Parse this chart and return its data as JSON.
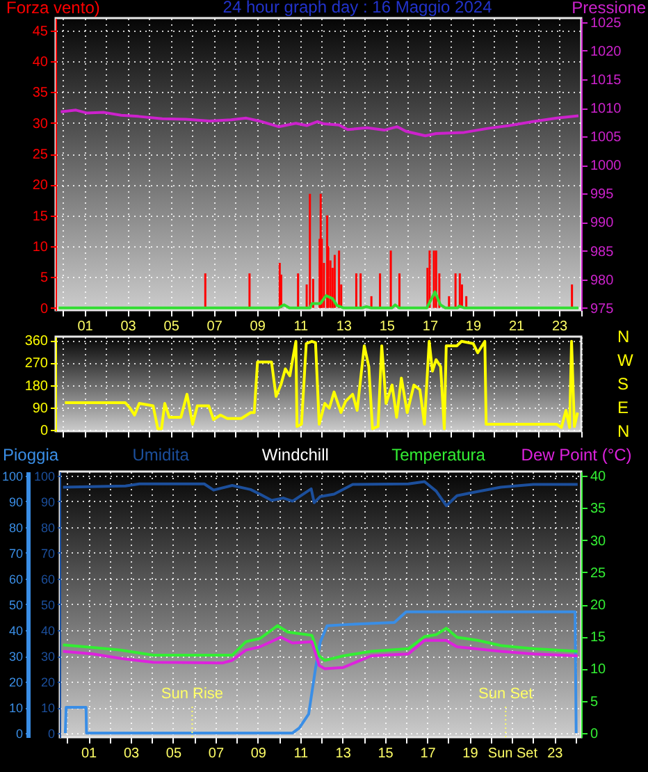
{
  "chart_data": [
    {
      "type": "bar",
      "title": "24 hour graph day : 16 Maggio 2024",
      "ylabel": "Forza vento)",
      "y2label": "Pressione",
      "xlim": [
        -0.34,
        24.03
      ],
      "xticks": [
        {
          "value": 0,
          "label": null
        },
        {
          "value": 1,
          "label": "01"
        },
        {
          "value": 2,
          "label": null
        },
        {
          "value": 3,
          "label": "03"
        },
        {
          "value": 4,
          "label": null
        },
        {
          "value": 5,
          "label": "05"
        },
        {
          "value": 6,
          "label": null
        },
        {
          "value": 7,
          "label": "07"
        },
        {
          "value": 8,
          "label": null
        },
        {
          "value": 9,
          "label": "09"
        },
        {
          "value": 10,
          "label": null
        },
        {
          "value": 11,
          "label": "11"
        },
        {
          "value": 12,
          "label": null
        },
        {
          "value": 13,
          "label": "13"
        },
        {
          "value": 14,
          "label": null
        },
        {
          "value": 15,
          "label": "15"
        },
        {
          "value": 16,
          "label": null
        },
        {
          "value": 17,
          "label": "17"
        },
        {
          "value": 18,
          "label": null
        },
        {
          "value": 19,
          "label": "19"
        },
        {
          "value": 20,
          "label": null
        },
        {
          "value": 21,
          "label": "21"
        },
        {
          "value": 22,
          "label": null
        },
        {
          "value": 23,
          "label": "23"
        },
        {
          "value": 24,
          "label": null
        }
      ],
      "ylim": [
        -0.37,
        47
      ],
      "yticks": [
        0,
        5,
        10,
        15,
        20,
        25,
        30,
        35,
        40,
        45
      ],
      "y2lim": [
        974.6,
        1025.7
      ],
      "y2ticks": [
        975,
        980,
        985,
        990,
        995,
        1000,
        1005,
        1010,
        1015,
        1020,
        1025
      ],
      "grid": true,
      "series": [
        {
          "color": "#ff0000",
          "x": [
            6.6,
            8.65,
            10.05,
            10.12,
            10.9,
            11.3,
            11.45,
            11.6,
            11.9,
            11.95,
            12.0,
            12.1,
            12.25,
            12.3,
            12.4,
            12.5,
            12.6,
            12.8,
            12.9,
            13.6,
            13.8,
            14.3,
            14.7,
            15.2,
            15.6,
            16.9,
            17.0,
            17.2,
            17.3,
            17.45,
            17.9,
            18.2,
            18.4,
            18.5,
            18.7,
            23.6
          ],
          "values": [
            5.6,
            5.6,
            7.3,
            5.4,
            5.6,
            3.8,
            18.5,
            4.7,
            11.2,
            18.5,
            11.2,
            7.3,
            15.0,
            10.0,
            7.7,
            6.5,
            8.6,
            9.3,
            3.8,
            5.6,
            5.6,
            1.9,
            5.6,
            9.3,
            5.6,
            6.5,
            9.3,
            9.3,
            9.3,
            5.6,
            1.9,
            5.6,
            5.6,
            3.8,
            1.9,
            3.8
          ]
        },
        {
          "type": "line",
          "color": "#33dd33",
          "x": [
            -0.2,
            9.99,
            10.25,
            10.5,
            11.45,
            11.54,
            11.93,
            12.2,
            12.5,
            12.7,
            13.0,
            13.86,
            14.07,
            14.3,
            15.26,
            15.4,
            15.58,
            16.87,
            17.25,
            17.5,
            17.73,
            18.3,
            18.37,
            18.6,
            23.9
          ],
          "values": [
            0,
            0,
            0.5,
            0,
            0,
            0.7,
            0.7,
            2.0,
            1.5,
            0.4,
            0,
            0,
            0.2,
            0,
            0,
            0.5,
            0,
            0,
            2.6,
            0.5,
            0,
            0,
            0.3,
            0,
            0
          ]
        },
        {
          "type": "line",
          "axis": "y2",
          "color": "#cc22cc",
          "x": [
            -0.1,
            0.6,
            1.1,
            1.9,
            2.7,
            3.5,
            4.6,
            5.7,
            6.8,
            7.8,
            8.5,
            9.1,
            10.0,
            10.8,
            11.3,
            11.8,
            12.1,
            12.8,
            13.2,
            14.1,
            14.9,
            15.5,
            15.9,
            16.8,
            17.3,
            18.6,
            19.7,
            20.7,
            21.8,
            22.9,
            23.9
          ],
          "values": [
            1009.3,
            1009.6,
            1009.1,
            1009.2,
            1008.7,
            1008.5,
            1008.1,
            1008.0,
            1007.7,
            1007.9,
            1008.2,
            1007.7,
            1006.7,
            1007.3,
            1006.9,
            1007.6,
            1007.2,
            1007.0,
            1006.2,
            1006.5,
            1006.1,
            1006.7,
            1005.9,
            1005.1,
            1005.5,
            1005.7,
            1006.4,
            1006.9,
            1007.6,
            1008.2,
            1008.6
          ]
        }
      ]
    },
    {
      "type": "line",
      "xlim": [
        -0.34,
        24.03
      ],
      "tick_labels": "y",
      "xticks": [
        {
          "value": 0,
          "label": null
        },
        {
          "value": 1,
          "label": null
        },
        {
          "value": 2,
          "label": null
        },
        {
          "value": 3,
          "label": null
        },
        {
          "value": 4,
          "label": null
        },
        {
          "value": 5,
          "label": null
        },
        {
          "value": 6,
          "label": null
        },
        {
          "value": 7,
          "label": null
        },
        {
          "value": 8,
          "label": null
        },
        {
          "value": 9,
          "label": null
        },
        {
          "value": 10,
          "label": null
        },
        {
          "value": 11,
          "label": null
        },
        {
          "value": 12,
          "label": null
        },
        {
          "value": 13,
          "label": null
        },
        {
          "value": 14,
          "label": null
        },
        {
          "value": 15,
          "label": null
        },
        {
          "value": 16,
          "label": null
        },
        {
          "value": 17,
          "label": null
        },
        {
          "value": 18,
          "label": null
        },
        {
          "value": 19,
          "label": null
        },
        {
          "value": 20,
          "label": null
        },
        {
          "value": 21,
          "label": null
        },
        {
          "value": 22,
          "label": null
        },
        {
          "value": 23,
          "label": null
        },
        {
          "value": 24,
          "label": null
        }
      ],
      "ylim": [
        -6,
        375
      ],
      "yticks": [
        0,
        90,
        180,
        270,
        360
      ],
      "annotations": [
        "N",
        "W",
        "S",
        "E",
        "N"
      ],
      "grid": true,
      "series": [
        {
          "color": "#ffff00",
          "x": [
            0.09,
            2.89,
            3.11,
            3.32,
            3.54,
            4.18,
            4.4,
            4.57,
            4.72,
            4.93,
            5.47,
            5.75,
            6.01,
            6.23,
            6.76,
            6.98,
            7.3,
            7.62,
            8.27,
            8.7,
            8.87,
            9.02,
            9.67,
            9.88,
            10.1,
            10.31,
            10.52,
            10.63,
            10.8,
            10.85,
            11.06,
            11.28,
            11.54,
            11.71,
            11.88,
            12.14,
            12.35,
            12.57,
            12.89,
            13.11,
            13.43,
            13.64,
            13.97,
            14.18,
            14.35,
            14.61,
            14.78,
            14.98,
            15.26,
            15.47,
            15.69,
            15.96,
            16.27,
            16.55,
            16.76,
            16.98,
            17.13,
            17.3,
            17.51,
            17.68,
            17.77,
            18.26,
            18.48,
            19.02,
            19.23,
            19.56,
            19.62,
            22.89,
            23.11,
            23.32,
            23.49,
            23.58,
            23.71,
            23.86
          ],
          "values": [
            109,
            109,
            87,
            59,
            106,
            96,
            4,
            4,
            106,
            50,
            50,
            143,
            22,
            96,
            96,
            41,
            59,
            45,
            45,
            69,
            69,
            273,
            273,
            134,
            180,
            245,
            217,
            273,
            356,
            13,
            22,
            347,
            356,
            351,
            22,
            106,
            87,
            152,
            69,
            115,
            143,
            78,
            338,
            254,
            4,
            13,
            338,
            106,
            180,
            50,
            208,
            69,
            180,
            161,
            22,
            356,
            236,
            282,
            254,
            4,
            338,
            338,
            356,
            347,
            310,
            356,
            22,
            22,
            9,
            78,
            9,
            356,
            13,
            69
          ]
        }
      ]
    },
    {
      "type": "line",
      "legend": "top",
      "xlim": [
        -0.35,
        24.27
      ],
      "xticks": [
        {
          "value": 0,
          "label": null
        },
        {
          "value": 1,
          "label": "01"
        },
        {
          "value": 2,
          "label": null
        },
        {
          "value": 3,
          "label": "03"
        },
        {
          "value": 4,
          "label": null
        },
        {
          "value": 5,
          "label": "05"
        },
        {
          "value": 6,
          "label": null
        },
        {
          "value": 7,
          "label": "07"
        },
        {
          "value": 8,
          "label": null
        },
        {
          "value": 9,
          "label": "09"
        },
        {
          "value": 10,
          "label": null
        },
        {
          "value": 11,
          "label": "11"
        },
        {
          "value": 12,
          "label": null
        },
        {
          "value": 13,
          "label": "13"
        },
        {
          "value": 14,
          "label": null
        },
        {
          "value": 15,
          "label": "15"
        },
        {
          "value": 16,
          "label": null
        },
        {
          "value": 17,
          "label": "17"
        },
        {
          "value": 18,
          "label": null
        },
        {
          "value": 19,
          "label": "19"
        },
        {
          "value": 20,
          "label": null
        },
        {
          "value": 21,
          "label": "Sun Set"
        },
        {
          "value": 22,
          "label": null
        },
        {
          "value": 23,
          "label": "23"
        },
        {
          "value": 24,
          "label": null
        }
      ],
      "ylim": [
        -1.6,
        101.6
      ],
      "yticks": [
        0,
        10,
        20,
        30,
        40,
        50,
        60,
        70,
        80,
        90,
        100
      ],
      "y3lim": [
        -1.6,
        101.6
      ],
      "y3ticks": [
        0,
        10,
        20,
        30,
        40,
        50,
        60,
        70,
        80,
        90,
        100
      ],
      "y2lim": [
        -0.65,
        40.65
      ],
      "y2ticks": [
        0,
        5,
        10,
        15,
        20,
        25,
        30,
        35,
        40
      ],
      "grid": true,
      "ref_lines": [
        {
          "axis": "x",
          "value": 5.9,
          "label": "Sun Rise",
          "color": "#ffff66",
          "line_style": "dotted"
        },
        {
          "axis": "x",
          "value": 20.7,
          "label": "Sun Set",
          "color": "#ffff66",
          "line_style": "dotted"
        }
      ],
      "series": [
        {
          "name": "Pioggia",
          "color": "#3a8ee6",
          "x": [
            -0.09,
            -0.05,
            0.89,
            0.91,
            10.63,
            10.96,
            11.4,
            11.73,
            11.95,
            12.27,
            13.26,
            15.45,
            16.0,
            23.98,
            24.03
          ],
          "values": [
            0,
            10,
            10,
            0,
            0,
            2,
            7.4,
            25.5,
            35.4,
            41.7,
            42.2,
            43,
            47.1,
            47.1,
            0
          ]
        },
        {
          "name": "Umidita",
          "axis": "y3",
          "color": "#1c4f9c",
          "x": [
            -0.2,
            2.75,
            3.41,
            6.47,
            6.91,
            7.79,
            8.66,
            9.1,
            9.65,
            10.2,
            10.64,
            11.52,
            11.66,
            11.95,
            12.6,
            13.48,
            16.11,
            16.87,
            17.42,
            17.9,
            18.4,
            19.17,
            20.47,
            22.0,
            24.1
          ],
          "values": [
            95.5,
            96,
            96.8,
            96.8,
            94.4,
            96.2,
            94.6,
            92.8,
            90.4,
            91.3,
            90.1,
            94.9,
            89.5,
            91.9,
            92.8,
            96.6,
            96.8,
            97.7,
            94,
            88.3,
            92.2,
            93.5,
            95.5,
            96.6,
            96.6
          ]
        },
        {
          "name": "Windchill",
          "axis": "y2",
          "color": "#ffffff"
        },
        {
          "name": "Temperatura",
          "axis": "y2",
          "color": "#33ee33",
          "x": [
            -0.2,
            1.22,
            2.53,
            4.06,
            7.35,
            7.79,
            8.44,
            9.1,
            9.93,
            10.41,
            11.55,
            11.9,
            12.16,
            13.04,
            14.35,
            16.11,
            16.87,
            17.42,
            17.9,
            18.4,
            19.39,
            20.48,
            22.02,
            24.1
          ],
          "values": [
            13.7,
            13.3,
            12.9,
            12.1,
            12.1,
            12.1,
            14.2,
            14.7,
            16.7,
            15.7,
            15.2,
            12.0,
            11.3,
            12.0,
            12.7,
            13.1,
            15.0,
            15.3,
            16.3,
            14.9,
            14.4,
            13.6,
            13.1,
            12.7
          ]
        },
        {
          "name": "Dew Point (°C)",
          "axis": "y2",
          "color": "#dd22dd",
          "x": [
            -0.2,
            1.22,
            2.53,
            4.06,
            7.35,
            7.79,
            8.44,
            9.1,
            10.09,
            10.63,
            11.55,
            11.9,
            12.16,
            13.04,
            14.35,
            16.11,
            16.87,
            17.9,
            18.4,
            20.48,
            22.02,
            24.1
          ],
          "values": [
            12.7,
            12.3,
            11.6,
            11.0,
            10.9,
            11.3,
            12.9,
            13.4,
            14.9,
            14.0,
            14.2,
            10.5,
            10.0,
            10.2,
            12.0,
            12.3,
            14.4,
            14.4,
            13.4,
            12.7,
            12.3,
            12.0
          ]
        }
      ]
    }
  ]
}
